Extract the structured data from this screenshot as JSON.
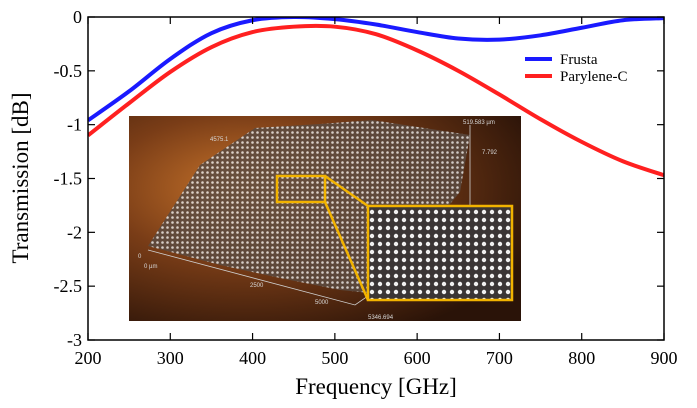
{
  "chart_data": {
    "type": "line",
    "title": "",
    "xlabel": "Frequency [GHz]",
    "ylabel": "Transmission [dB]",
    "xlim": [
      200,
      900
    ],
    "ylim": [
      -3,
      0
    ],
    "xticks": [
      200,
      300,
      400,
      500,
      600,
      700,
      800,
      900
    ],
    "yticks": [
      0,
      -0.5,
      -1,
      -1.5,
      -2,
      -2.5,
      -3
    ],
    "ytick_labels": [
      "0",
      "-0.5",
      "-1",
      "-1.5",
      "-2",
      "-2.5",
      "-3"
    ],
    "grid": false,
    "legend_position": "top-right",
    "x": [
      200,
      250,
      300,
      350,
      400,
      450,
      500,
      550,
      600,
      650,
      700,
      750,
      800,
      850,
      900
    ],
    "series": [
      {
        "name": "Frusta",
        "color": "#1a1aff",
        "values": [
          -0.96,
          -0.69,
          -0.39,
          -0.15,
          -0.03,
          0.0,
          -0.02,
          -0.07,
          -0.14,
          -0.2,
          -0.21,
          -0.17,
          -0.1,
          -0.03,
          -0.01
        ]
      },
      {
        "name": "Parylene-C",
        "color": "#ff2020",
        "values": [
          -1.1,
          -0.8,
          -0.51,
          -0.28,
          -0.14,
          -0.09,
          -0.09,
          -0.16,
          -0.31,
          -0.5,
          -0.72,
          -0.95,
          -1.16,
          -1.34,
          -1.47
        ]
      }
    ],
    "inset": {
      "description_labels": [
        "4575.1",
        "519.583 µm",
        "7.792",
        "0",
        "0 µm",
        "2500",
        "5000",
        "5346.694"
      ],
      "highlight_color": "#f2b300"
    }
  }
}
